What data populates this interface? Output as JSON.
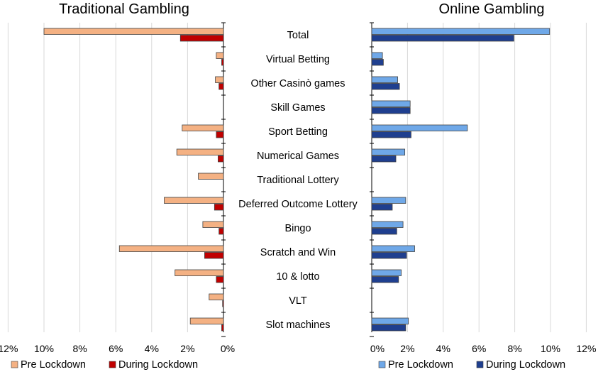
{
  "chart_data": [
    {
      "type": "bar",
      "orientation": "horizontal",
      "title": "Traditional Gambling",
      "direction": "reversed",
      "xlim": [
        0,
        12
      ],
      "xticks": [
        "0%",
        "2%",
        "4%",
        "6%",
        "8%",
        "10%",
        "12%"
      ],
      "grid": true,
      "legend_position": "bottom",
      "categories": [
        "Total",
        "Virtual Betting",
        "Other Casinò games",
        "Skill Games",
        "Sport Betting",
        "Numerical Games",
        "Traditional Lottery",
        "Deferred Outcome Lottery",
        "Bingo",
        "Scratch and Win",
        "10 & lotto",
        "VLT",
        "Slot machines"
      ],
      "series": [
        {
          "name": "Pre Lockdown",
          "color": "#f4b183",
          "values": [
            10.0,
            0.4,
            0.45,
            0.0,
            2.3,
            2.6,
            1.4,
            3.3,
            1.15,
            5.8,
            2.7,
            0.8,
            1.85
          ]
        },
        {
          "name": "During Lockdown",
          "color": "#c00000",
          "values": [
            2.4,
            0.1,
            0.25,
            0.0,
            0.4,
            0.3,
            0.0,
            0.5,
            0.25,
            1.05,
            0.4,
            0.05,
            0.1
          ]
        }
      ]
    },
    {
      "type": "bar",
      "orientation": "horizontal",
      "title": "Online Gambling",
      "direction": "normal",
      "xlim": [
        0,
        12
      ],
      "xticks": [
        "0%",
        "2%",
        "4%",
        "6%",
        "8%",
        "10%",
        "12%"
      ],
      "grid": true,
      "legend_position": "bottom",
      "categories": [
        "Total",
        "Virtual Betting",
        "Other Casinò games",
        "Skill Games",
        "Sport Betting",
        "Numerical Games",
        "Traditional Lottery",
        "Deferred Outcome Lottery",
        "Bingo",
        "Scratch and Win",
        "10 & lotto",
        "VLT",
        "Slot machines"
      ],
      "series": [
        {
          "name": "Pre Lockdown",
          "color": "#6fa8e8",
          "values": [
            9.95,
            0.6,
            1.45,
            2.15,
            5.35,
            1.85,
            0.0,
            1.9,
            1.75,
            2.4,
            1.65,
            0.0,
            2.05
          ]
        },
        {
          "name": "During Lockdown",
          "color": "#1f3f8f",
          "values": [
            7.95,
            0.65,
            1.55,
            2.15,
            2.2,
            1.35,
            0.0,
            1.15,
            1.4,
            1.95,
            1.5,
            0.0,
            1.9
          ]
        }
      ]
    }
  ]
}
